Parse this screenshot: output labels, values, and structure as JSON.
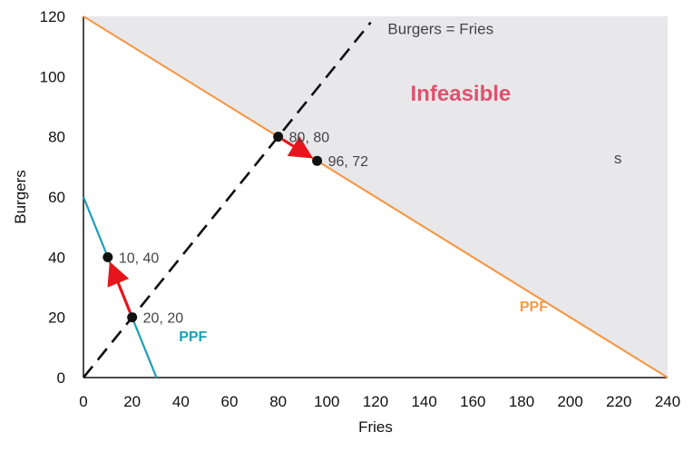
{
  "chart_data": {
    "type": "line",
    "xlabel": "Fries",
    "ylabel": "Burgers",
    "xlim": [
      0,
      240
    ],
    "ylim": [
      0,
      120
    ],
    "x_ticks": [
      0,
      20,
      40,
      60,
      80,
      100,
      120,
      140,
      160,
      180,
      200,
      220,
      240
    ],
    "y_ticks": [
      0,
      20,
      40,
      60,
      80,
      100,
      120
    ],
    "grid": false,
    "series": [
      {
        "role": "ppf-outer",
        "name": "PPF",
        "color": "#f39a4a",
        "points": [
          [
            0,
            120
          ],
          [
            240,
            0
          ]
        ]
      },
      {
        "role": "ppf-inner",
        "name": "PPF",
        "color": "#1b9fb4",
        "points": [
          [
            0,
            60
          ],
          [
            30,
            0
          ]
        ]
      },
      {
        "role": "equal-line",
        "name": "Burgers = Fries",
        "color": "#111111",
        "style": "dashed",
        "points": [
          [
            0,
            0
          ],
          [
            118,
            118
          ]
        ]
      }
    ],
    "points": [
      {
        "x": 20,
        "y": 20,
        "label": "20, 20"
      },
      {
        "x": 10,
        "y": 40,
        "label": "10, 40"
      },
      {
        "x": 80,
        "y": 80,
        "label": "80, 80"
      },
      {
        "x": 96,
        "y": 72,
        "label": "96, 72"
      }
    ],
    "arrows": [
      {
        "from": [
          20,
          20
        ],
        "to": [
          10,
          40
        ],
        "color": "#e8141b"
      },
      {
        "from": [
          80,
          80
        ],
        "to": [
          96,
          72
        ],
        "color": "#e8141b"
      }
    ],
    "region": {
      "label": "Infeasible",
      "fill": "#e8e8ea",
      "label_color": "#e0516e",
      "label_x": 155,
      "label_y": 92
    },
    "ppf_labels": [
      {
        "text": "PPF",
        "x": 185,
        "y": 22,
        "color": "#f39a4a"
      },
      {
        "text": "PPF",
        "x": 45,
        "y": 12,
        "color": "#1b9fb4"
      }
    ],
    "annotations": [
      {
        "text": "Burgers = Fries",
        "x": 125,
        "y": 116
      },
      {
        "text": "s",
        "x": 218,
        "y": 73,
        "color": "#ffffff"
      }
    ]
  }
}
